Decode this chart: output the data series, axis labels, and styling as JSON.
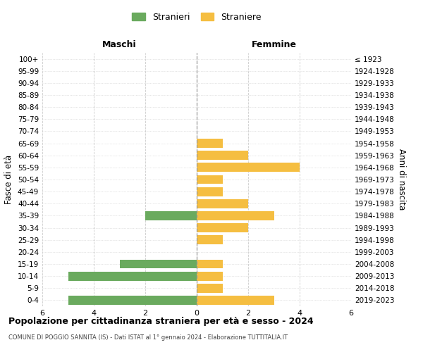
{
  "age_groups": [
    "0-4",
    "5-9",
    "10-14",
    "15-19",
    "20-24",
    "25-29",
    "30-34",
    "35-39",
    "40-44",
    "45-49",
    "50-54",
    "55-59",
    "60-64",
    "65-69",
    "70-74",
    "75-79",
    "80-84",
    "85-89",
    "90-94",
    "95-99",
    "100+"
  ],
  "birth_years": [
    "2019-2023",
    "2014-2018",
    "2009-2013",
    "2004-2008",
    "1999-2003",
    "1994-1998",
    "1989-1993",
    "1984-1988",
    "1979-1983",
    "1974-1978",
    "1969-1973",
    "1964-1968",
    "1959-1963",
    "1954-1958",
    "1949-1953",
    "1944-1948",
    "1939-1943",
    "1934-1938",
    "1929-1933",
    "1924-1928",
    "≤ 1923"
  ],
  "maschi": [
    5,
    0,
    5,
    3,
    0,
    0,
    0,
    2,
    0,
    0,
    0,
    0,
    0,
    0,
    0,
    0,
    0,
    0,
    0,
    0,
    0
  ],
  "femmine": [
    3,
    1,
    1,
    1,
    0,
    1,
    2,
    3,
    2,
    1,
    1,
    4,
    2,
    1,
    0,
    0,
    0,
    0,
    0,
    0,
    0
  ],
  "maschi_color": "#6aaa5e",
  "femmine_color": "#f5be41",
  "title": "Popolazione per cittadinanza straniera per età e sesso - 2024",
  "subtitle": "COMUNE DI POGGIO SANNITA (IS) - Dati ISTAT al 1° gennaio 2024 - Elaborazione TUTTITALIA.IT",
  "ylabel_left": "Fasce di età",
  "ylabel_right": "Anni di nascita",
  "xlabel_maschi": "Maschi",
  "xlabel_femmine": "Femmine",
  "legend_stranieri": "Stranieri",
  "legend_straniere": "Straniere",
  "xlim": 6,
  "background_color": "#ffffff",
  "grid_color": "#cccccc"
}
